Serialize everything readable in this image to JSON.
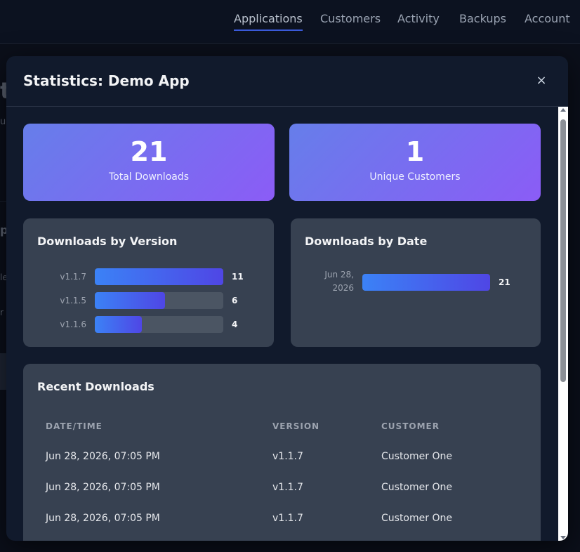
{
  "nav": {
    "items": [
      "Applications",
      "Customers",
      "Activity",
      "Backups",
      "Account"
    ],
    "active": "Applications"
  },
  "background": {
    "fragments": [
      "t",
      "u",
      "p",
      "le",
      "r"
    ]
  },
  "modal": {
    "title": "Statistics: Demo App",
    "close_icon": "×"
  },
  "stats": {
    "total_downloads": {
      "value": "21",
      "label": "Total Downloads"
    },
    "unique_customers": {
      "value": "1",
      "label": "Unique Customers"
    }
  },
  "by_version": {
    "title": "Downloads by Version",
    "max": 11,
    "rows": [
      {
        "label": "v1.1.7",
        "value": 11
      },
      {
        "label": "v1.1.5",
        "value": 6
      },
      {
        "label": "v1.1.6",
        "value": 4
      }
    ]
  },
  "by_date": {
    "title": "Downloads by Date",
    "max": 21,
    "rows": [
      {
        "label_line1": "Jun 28,",
        "label_line2": "2026",
        "value": 21
      }
    ]
  },
  "recent": {
    "title": "Recent Downloads",
    "columns": [
      "DATE/TIME",
      "VERSION",
      "CUSTOMER"
    ],
    "rows": [
      {
        "datetime": "Jun 28, 2026, 07:05 PM",
        "version": "v1.1.7",
        "customer": "Customer One"
      },
      {
        "datetime": "Jun 28, 2026, 07:05 PM",
        "version": "v1.1.7",
        "customer": "Customer One"
      },
      {
        "datetime": "Jun 28, 2026, 07:05 PM",
        "version": "v1.1.7",
        "customer": "Customer One"
      }
    ]
  },
  "colors": {
    "card_gradient_start": "#667eea",
    "card_gradient_end": "#8b5cf6",
    "bar_gradient_start": "#3b82f6",
    "bar_gradient_end": "#4f46e5",
    "panel": "#374151"
  }
}
